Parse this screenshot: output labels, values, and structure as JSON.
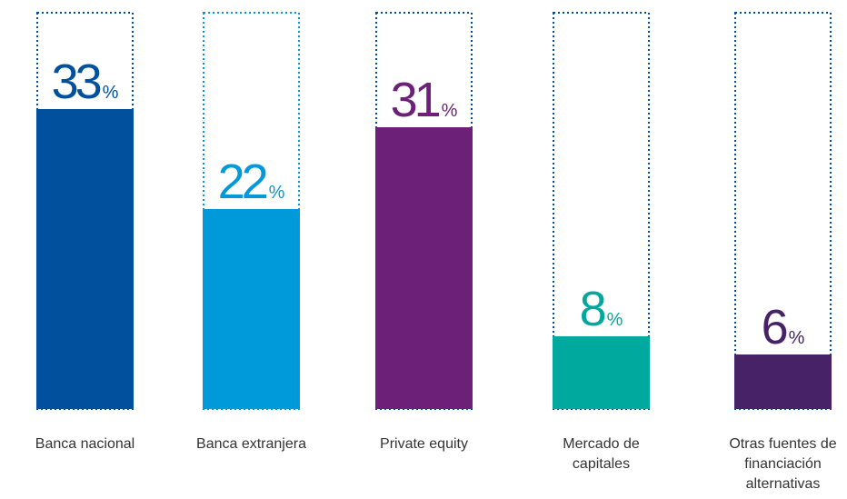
{
  "chart_data": {
    "type": "bar",
    "categories": [
      "Banca nacional",
      "Banca extranjera",
      "Private equity",
      "Mercado de capitales",
      "Otras fuentes de financiación alternativas"
    ],
    "values": [
      33,
      22,
      31,
      8,
      6
    ],
    "value_labels": [
      "33%",
      "22%",
      "31%",
      "8%",
      "6%"
    ],
    "colors": [
      "#00509e",
      "#0099da",
      "#6d2077",
      "#00a99d",
      "#472267"
    ],
    "outline_colors": [
      "#00509e",
      "#0099da",
      "#00509e",
      "#00509e",
      "#00509e"
    ]
  }
}
